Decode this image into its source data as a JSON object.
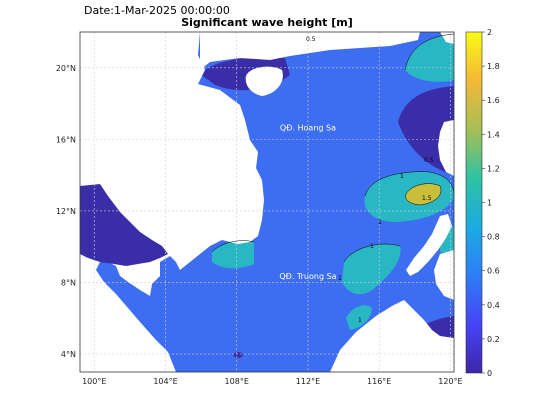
{
  "header": {
    "date": "Date:1-Mar-2025 00:00:00",
    "title": "Significant wave height [m]"
  },
  "map": {
    "lon_range": [
      99.2,
      120.2
    ],
    "lat_range": [
      3.0,
      22.0
    ],
    "lon_ticks": [
      "100°E",
      "104°E",
      "108°E",
      "112°E",
      "116°E",
      "120°E"
    ],
    "lat_ticks": [
      "4°N",
      "8°N",
      "12°N",
      "16°N",
      "20°N"
    ],
    "grid": true,
    "places": [
      {
        "name": "QĐ. Hoang Sa",
        "lon": 112.0,
        "lat": 16.5
      },
      {
        "name": "QĐ. Truong Sa",
        "lon": 112.0,
        "lat": 8.2
      }
    ],
    "contour_labels": [
      "0.5",
      "1",
      "1",
      "1",
      "1.5",
      "1",
      "1",
      "0.5"
    ]
  },
  "colorbar": {
    "min": 0,
    "max": 2,
    "ticks": [
      "0",
      "0.2",
      "0.4",
      "0.6",
      "0.8",
      "1",
      "1.2",
      "1.4",
      "1.6",
      "1.8",
      "2"
    ],
    "colors": [
      "#3e26a8",
      "#4743f8",
      "#2f7bf8",
      "#1ca9e3",
      "#2dc3a4",
      "#a4be56",
      "#f4b936",
      "#f9fb15"
    ]
  },
  "colors": {
    "sea_base": "#3d6ef2",
    "sea_low": "#3a2ea8",
    "sea_mid": "#29b7c4",
    "sea_high": "#c9bf3a",
    "land": "#ffffff"
  }
}
